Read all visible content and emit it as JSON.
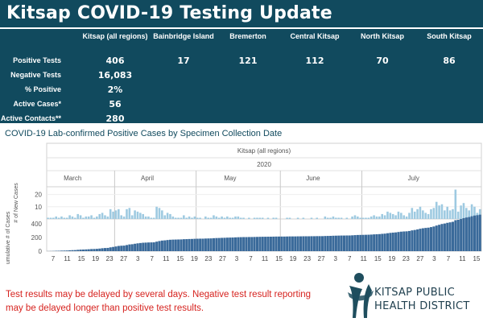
{
  "header": {
    "title": "Kitsap COVID-19 Testing Update"
  },
  "stats": {
    "columns": [
      "Kitsap (all regions)",
      "Bainbridge Island",
      "Bremerton",
      "Central Kitsap",
      "North Kitsap",
      "South Kitsap"
    ],
    "rows": [
      {
        "label": "Positive Tests",
        "values": [
          "406",
          "17",
          "121",
          "112",
          "70",
          "86"
        ]
      },
      {
        "label": "Negative Tests",
        "values": [
          "16,083",
          "",
          "",
          "",
          "",
          ""
        ]
      },
      {
        "label": "% Positive",
        "values": [
          "2%",
          "",
          "",
          "",
          "",
          ""
        ]
      },
      {
        "label": "Active Cases*",
        "values": [
          "56",
          "",
          "",
          "",
          "",
          ""
        ]
      },
      {
        "label": "Active Contacts**",
        "values": [
          "280",
          "",
          "",
          "",
          "",
          ""
        ]
      }
    ]
  },
  "chart_section": {
    "title": "COVID-19 Lab-confirmed Positive Cases by Specimen Collection Date"
  },
  "chart_data": {
    "type": "bar",
    "region_label": "Kitsap (all regions)",
    "year_label": "2020",
    "months": [
      "March",
      "April",
      "May",
      "June",
      "July"
    ],
    "top_panel": {
      "ylabel": "# of New Cases",
      "ylim": [
        0,
        25
      ],
      "ticks": [
        "20",
        "10"
      ],
      "values": [
        1,
        1,
        1,
        2,
        1,
        2,
        1,
        1,
        3,
        2,
        1,
        4,
        3,
        1,
        2,
        2,
        3,
        1,
        2,
        4,
        5,
        3,
        2,
        8,
        6,
        7,
        8,
        3,
        2,
        8,
        9,
        3,
        7,
        6,
        5,
        4,
        2,
        2,
        1,
        1,
        10,
        9,
        7,
        3,
        5,
        4,
        2,
        1,
        1,
        1,
        3,
        1,
        2,
        1,
        2,
        1,
        1,
        0,
        2,
        1,
        1,
        3,
        2,
        1,
        2,
        1,
        2,
        1,
        1,
        2,
        2,
        1,
        1,
        0,
        1,
        0,
        1,
        1,
        1,
        1,
        0,
        1,
        0,
        1,
        1,
        0,
        0,
        0,
        1,
        1,
        0,
        0,
        1,
        0,
        1,
        0,
        0,
        1,
        0,
        1,
        0,
        0,
        2,
        1,
        1,
        2,
        1,
        1,
        1,
        0,
        1,
        0,
        2,
        3,
        2,
        1,
        1,
        1,
        1,
        2,
        3,
        2,
        2,
        4,
        3,
        6,
        5,
        4,
        3,
        6,
        5,
        3,
        2,
        5,
        9,
        6,
        8,
        10,
        7,
        5,
        4,
        8,
        9,
        14,
        11,
        12,
        7,
        10,
        7,
        8,
        24,
        6,
        11,
        13,
        9,
        7,
        12,
        10,
        5,
        8
      ],
      "bar_color": "#9ecae1"
    },
    "bottom_panel": {
      "ylabel": "Cumulative # of Cases",
      "ylim": [
        0,
        450
      ],
      "ticks": [
        "400",
        "200",
        "0"
      ],
      "values_start": 0,
      "bar_color": "#3a6a9a"
    },
    "x_tick_labels": [
      "7",
      "11",
      "15",
      "19",
      "23",
      "27",
      "3",
      "7",
      "11",
      "15",
      "19",
      "23",
      "27",
      "3",
      "7",
      "11",
      "15",
      "19",
      "23",
      "27",
      "3",
      "7",
      "11",
      "15",
      "19",
      "23",
      "27",
      "3",
      "7",
      "11",
      "15"
    ]
  },
  "footer": {
    "disclaimer": "Test results may be delayed by several days. Negative test result reporting may be delayed longer than positive test results.",
    "logo_line1": "KITSAP PUBLIC",
    "logo_line2": "HEALTH DISTRICT"
  },
  "colors": {
    "brand": "#114a5e",
    "warning": "#d6231f",
    "new_cases": "#9ecae1",
    "cumulative": "#3a6a9a"
  }
}
